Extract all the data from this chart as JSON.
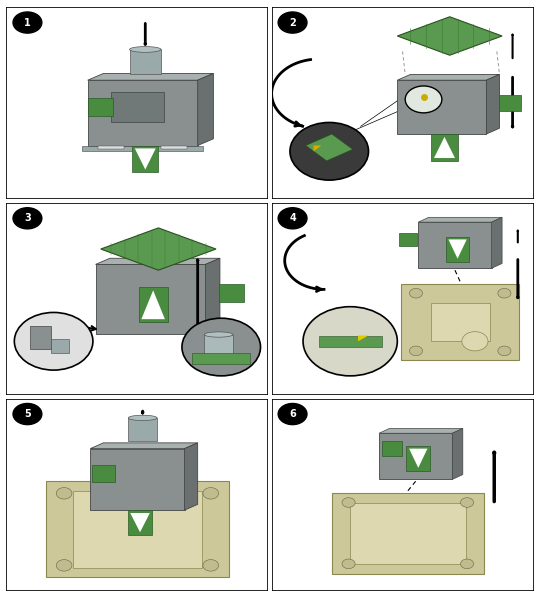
{
  "figure_width": 5.4,
  "figure_height": 5.98,
  "dpi": 100,
  "background_color": "#ffffff",
  "border_color": "#000000",
  "panel_bg": "#ffffff",
  "black": "#000000",
  "white": "#ffffff",
  "green_color": "#4a8c3f",
  "dark_gray": "#7a8080",
  "medium_gray": "#9aa0a0",
  "light_gray": "#c8cbcb",
  "beige": "#ccc89a",
  "beige_dark": "#b0ac7a"
}
